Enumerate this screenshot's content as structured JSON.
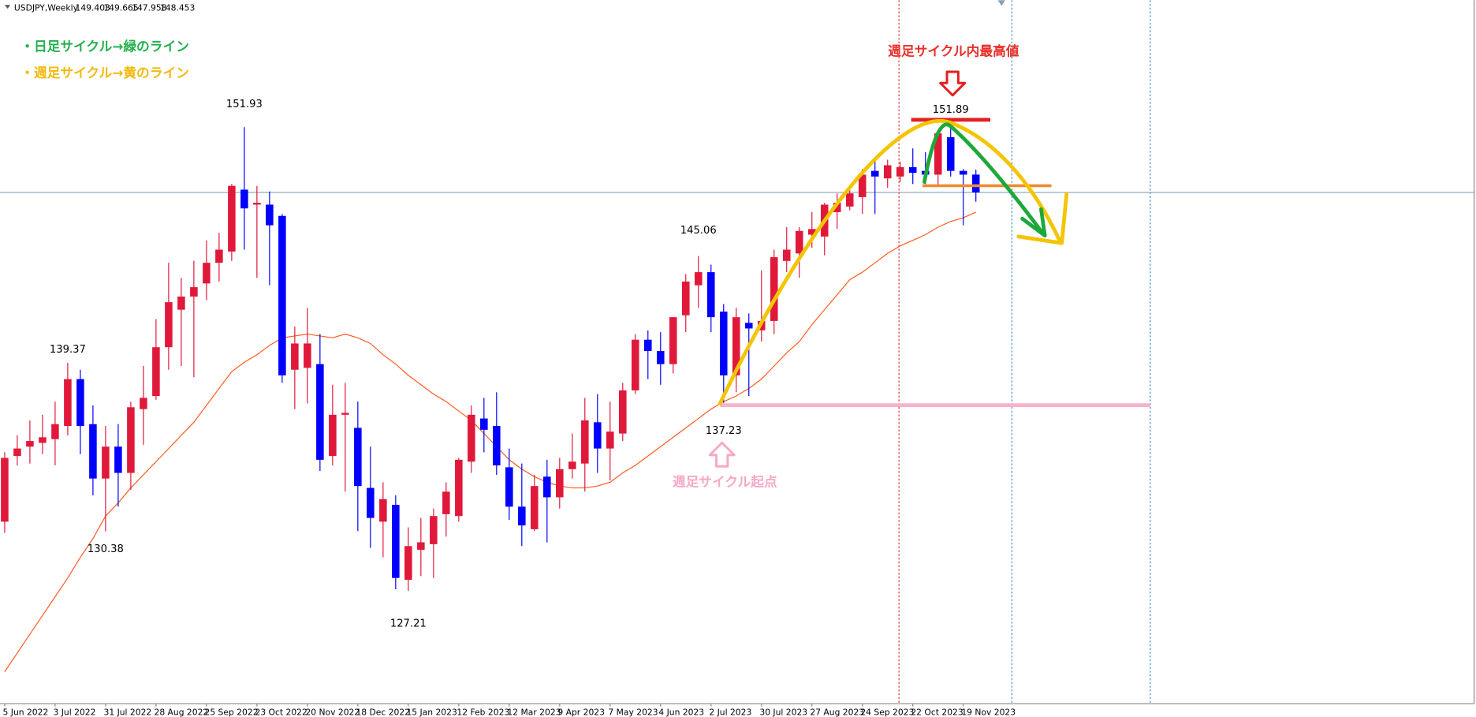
{
  "chart_data": {
    "type": "candlestick",
    "symbol": "USDJPY,Weekly",
    "open": [
      130.9,
      134.4,
      134.9,
      135.1,
      135.3,
      136.0,
      138.5,
      136.1,
      133.2,
      134.9,
      133.5,
      136.9,
      137.6,
      140.2,
      142.2,
      142.9,
      143.6,
      144.7,
      145.3,
      148.6,
      147.8,
      147.8,
      147.2,
      139.0,
      139.1,
      139.3,
      134.4,
      136.6,
      135.9,
      132.7,
      130.9,
      131.8,
      127.8,
      129.4,
      129.7,
      131.3,
      131.2,
      134.1,
      136.4,
      136.0,
      133.8,
      131.7,
      130.5,
      133.3,
      132.2,
      133.7,
      134.0,
      136.2,
      134.8,
      135.6,
      137.9,
      140.6,
      140.0,
      139.3,
      141.9,
      143.5,
      144.2,
      142.1,
      138.7,
      141.5,
      141.1,
      141.6,
      144.8,
      145.2,
      146.2,
      146.1,
      147.4,
      147.7,
      148.2,
      149.6,
      149.2,
      149.3,
      149.8,
      149.6,
      149.4,
      151.4,
      149.6,
      149.403
    ],
    "high": [
      134.6,
      135.5,
      136.3,
      136.6,
      137.3,
      139.37,
      139.0,
      137.1,
      136.0,
      136.1,
      137.3,
      139.2,
      141.7,
      144.7,
      143.9,
      144.8,
      145.9,
      146.3,
      148.9,
      151.93,
      148.8,
      148.5,
      147.3,
      141.3,
      142.3,
      140.9,
      138.2,
      138.3,
      137.3,
      134.9,
      133.0,
      132.3,
      130.6,
      131.1,
      131.6,
      133.0,
      134.3,
      137.1,
      137.5,
      137.8,
      134.8,
      134.0,
      133.4,
      134.2,
      134.3,
      135.6,
      137.5,
      137.7,
      137.3,
      138.3,
      140.9,
      141.1,
      141.0,
      141.8,
      144.1,
      145.06,
      144.6,
      142.5,
      142.3,
      142.0,
      144.3,
      145.4,
      146.6,
      146.6,
      147.4,
      147.9,
      148.4,
      148.8,
      149.7,
      150.2,
      150.2,
      150.1,
      150.8,
      150.6,
      151.7,
      151.89,
      149.7,
      149.665
    ],
    "low": [
      130.3,
      133.9,
      134.0,
      134.5,
      133.9,
      135.5,
      134.5,
      132.3,
      130.38,
      131.7,
      132.6,
      135.0,
      137.4,
      139.0,
      139.2,
      138.6,
      142.7,
      143.7,
      144.8,
      145.4,
      143.9,
      143.5,
      138.3,
      136.9,
      137.2,
      133.6,
      133.9,
      132.5,
      130.4,
      129.5,
      129.0,
      127.3,
      127.21,
      128.0,
      127.9,
      130.1,
      130.9,
      133.5,
      134.6,
      133.4,
      131.0,
      129.6,
      130.4,
      129.8,
      131.6,
      133.2,
      132.5,
      133.5,
      133.1,
      135.2,
      137.7,
      138.5,
      138.2,
      138.8,
      141.0,
      142.3,
      141.0,
      137.23,
      137.8,
      137.6,
      140.5,
      140.9,
      144.2,
      143.9,
      145.5,
      145.1,
      146.5,
      147.5,
      147.3,
      147.3,
      148.7,
      149.0,
      148.9,
      148.9,
      148.8,
      149.3,
      146.7,
      147.958
    ],
    "close": [
      134.3,
      134.8,
      135.2,
      135.4,
      136.1,
      138.5,
      136.0,
      133.2,
      134.9,
      133.5,
      137.0,
      137.5,
      140.2,
      142.6,
      142.9,
      143.4,
      144.7,
      145.4,
      148.8,
      147.6,
      147.9,
      146.7,
      138.7,
      140.4,
      140.4,
      134.2,
      136.6,
      136.7,
      132.8,
      131.1,
      132.1,
      127.9,
      129.6,
      129.8,
      131.2,
      132.5,
      134.2,
      136.6,
      135.8,
      133.9,
      131.7,
      130.7,
      132.8,
      132.2,
      133.7,
      134.1,
      136.3,
      134.8,
      135.7,
      137.9,
      140.6,
      140.0,
      139.3,
      141.8,
      143.7,
      144.2,
      141.8,
      138.7,
      141.8,
      141.2,
      141.6,
      145.0,
      145.4,
      146.4,
      146.5,
      147.8,
      147.9,
      148.4,
      149.4,
      149.3,
      149.9,
      149.8,
      149.5,
      149.4,
      151.6,
      149.6,
      149.4,
      148.453
    ],
    "up_color": "#e0193a",
    "down_color": "#0000ff",
    "ma": {
      "color": "#ff5a1f",
      "values": [
        122.9,
        123.9,
        124.9,
        125.9,
        126.9,
        127.9,
        129.0,
        130.0,
        131.2,
        131.9,
        132.7,
        133.4,
        134.1,
        134.8,
        135.5,
        136.2,
        137.1,
        138.0,
        138.9,
        139.4,
        139.8,
        140.3,
        140.7,
        140.8,
        140.9,
        140.8,
        140.7,
        140.9,
        140.7,
        140.4,
        139.8,
        139.3,
        138.7,
        138.2,
        137.7,
        137.3,
        136.8,
        136.3,
        135.6,
        134.9,
        134.2,
        133.7,
        133.3,
        133.0,
        132.8,
        132.7,
        132.7,
        132.8,
        133.0,
        133.5,
        133.9,
        134.4,
        134.9,
        135.4,
        135.9,
        136.4,
        136.9,
        137.3,
        137.6,
        138.0,
        138.5,
        139.2,
        139.9,
        140.5,
        141.4,
        142.2,
        143.0,
        143.8,
        144.2,
        144.7,
        145.2,
        145.6,
        145.9,
        146.2,
        146.6,
        146.9,
        147.1,
        147.4
      ]
    },
    "ylim": [
      121.2,
      158.7
    ],
    "xlim": [
      -0.37,
      116.5
    ],
    "xticks": [
      {
        "value": 0,
        "label": "5 Jun 2022"
      },
      {
        "value": 4,
        "label": "3 Jul 2022"
      },
      {
        "value": 8,
        "label": "31 Jul 2022"
      },
      {
        "value": 12,
        "label": "28 Aug 2022"
      },
      {
        "value": 16,
        "label": "25 Sep 2022"
      },
      {
        "value": 20,
        "label": "23 Oct 2022"
      },
      {
        "value": 24,
        "label": "20 Nov 2022"
      },
      {
        "value": 28,
        "label": "18 Dec 2022"
      },
      {
        "value": 32,
        "label": "15 Jan 2023"
      },
      {
        "value": 36,
        "label": "12 Feb 2023"
      },
      {
        "value": 40,
        "label": "12 Mar 2023"
      },
      {
        "value": 44,
        "label": "9 Apr 2023"
      },
      {
        "value": 48,
        "label": "7 May 2023"
      },
      {
        "value": 52,
        "label": "4 Jun 2023"
      },
      {
        "value": 56,
        "label": "2 Jul 2023"
      },
      {
        "value": 60,
        "label": "30 Jul 2023"
      },
      {
        "value": 64,
        "label": "27 Aug 2023"
      },
      {
        "value": 68,
        "label": "24 Sep 2023"
      },
      {
        "value": 72,
        "label": "22 Oct 2023"
      },
      {
        "value": 76,
        "label": "19 Nov 2023"
      }
    ],
    "annotations": [
      "・日足サイクル→緑のライン",
      "・週足サイクル→黄のライン",
      "週足サイクル内最高値",
      "週足サイクル起点"
    ]
  }
}
